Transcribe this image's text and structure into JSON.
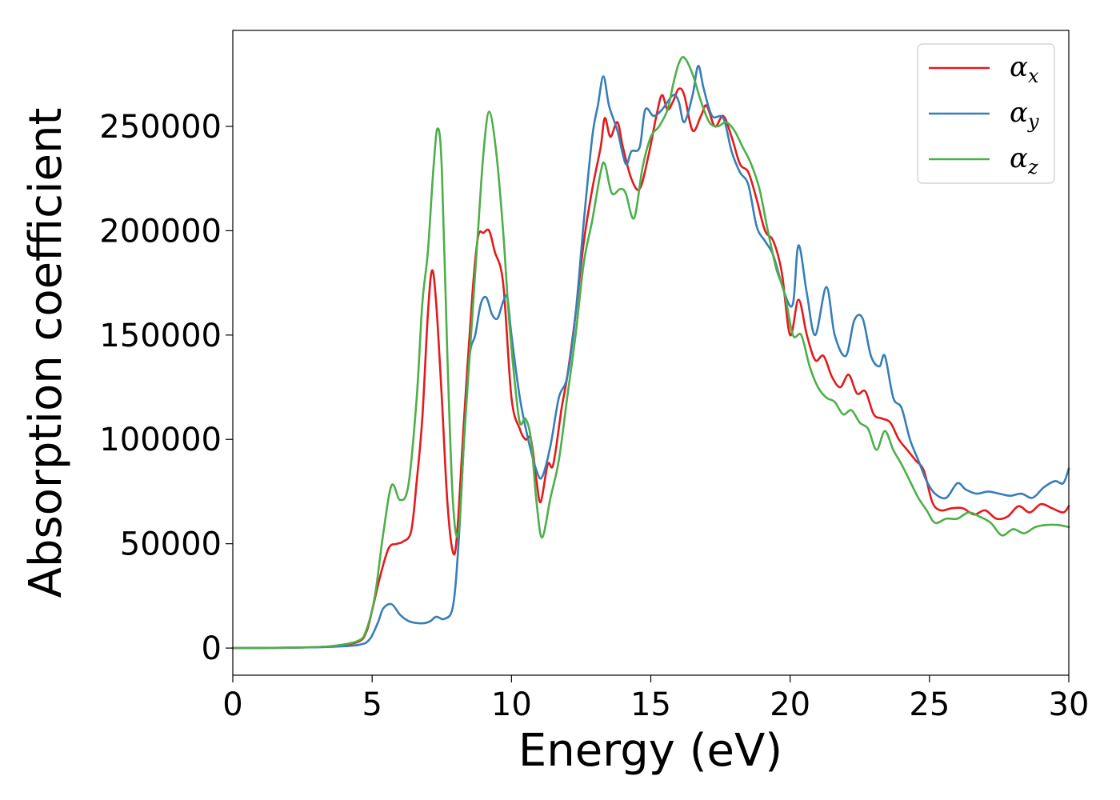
{
  "chart_data": {
    "type": "line",
    "title": "",
    "xlabel": "Energy (eV)",
    "ylabel": "Absorption coefficient",
    "xlim": [
      0,
      30
    ],
    "ylim": [
      -13000,
      296000
    ],
    "xticks": [
      0,
      5,
      10,
      15,
      20,
      25,
      30
    ],
    "yticks": [
      0,
      50000,
      100000,
      150000,
      200000,
      250000
    ],
    "legend_position": "top-right",
    "grid": false,
    "series": [
      {
        "name": "αx",
        "symbol": "α",
        "subscript": "x",
        "color": "#e41a1c",
        "points": [
          [
            0,
            0
          ],
          [
            2,
            200
          ],
          [
            3.5,
            800
          ],
          [
            4.5,
            3000
          ],
          [
            4.8,
            8000
          ],
          [
            5.0,
            18000
          ],
          [
            5.3,
            35000
          ],
          [
            5.6,
            48000
          ],
          [
            5.9,
            50000
          ],
          [
            6.1,
            51000
          ],
          [
            6.4,
            56000
          ],
          [
            6.6,
            80000
          ],
          [
            6.8,
            110000
          ],
          [
            7.0,
            160000
          ],
          [
            7.15,
            181000
          ],
          [
            7.3,
            165000
          ],
          [
            7.5,
            120000
          ],
          [
            7.7,
            70000
          ],
          [
            7.9,
            46000
          ],
          [
            8.05,
            55000
          ],
          [
            8.3,
            110000
          ],
          [
            8.6,
            170000
          ],
          [
            8.8,
            197000
          ],
          [
            9.0,
            199000
          ],
          [
            9.2,
            200000
          ],
          [
            9.4,
            190000
          ],
          [
            9.7,
            175000
          ],
          [
            10.0,
            120000
          ],
          [
            10.3,
            105000
          ],
          [
            10.5,
            100000
          ],
          [
            10.7,
            100000
          ],
          [
            10.9,
            80000
          ],
          [
            11.05,
            70000
          ],
          [
            11.3,
            88000
          ],
          [
            11.5,
            88000
          ],
          [
            11.8,
            115000
          ],
          [
            12.0,
            130000
          ],
          [
            12.3,
            160000
          ],
          [
            12.6,
            195000
          ],
          [
            12.9,
            220000
          ],
          [
            13.2,
            240000
          ],
          [
            13.35,
            254000
          ],
          [
            13.55,
            245000
          ],
          [
            13.8,
            252000
          ],
          [
            14.0,
            240000
          ],
          [
            14.3,
            225000
          ],
          [
            14.6,
            220000
          ],
          [
            14.9,
            235000
          ],
          [
            15.2,
            255000
          ],
          [
            15.4,
            265000
          ],
          [
            15.6,
            258000
          ],
          [
            15.8,
            262000
          ],
          [
            16.0,
            268000
          ],
          [
            16.2,
            265000
          ],
          [
            16.5,
            248000
          ],
          [
            16.8,
            255000
          ],
          [
            17.0,
            260000
          ],
          [
            17.3,
            250000
          ],
          [
            17.6,
            255000
          ],
          [
            17.9,
            245000
          ],
          [
            18.2,
            232000
          ],
          [
            18.5,
            228000
          ],
          [
            18.8,
            215000
          ],
          [
            19.1,
            200000
          ],
          [
            19.4,
            195000
          ],
          [
            19.7,
            180000
          ],
          [
            20.0,
            150000
          ],
          [
            20.3,
            167000
          ],
          [
            20.6,
            150000
          ],
          [
            20.9,
            138000
          ],
          [
            21.2,
            140000
          ],
          [
            21.5,
            130000
          ],
          [
            21.8,
            125000
          ],
          [
            22.1,
            131000
          ],
          [
            22.4,
            122000
          ],
          [
            22.7,
            123000
          ],
          [
            23.0,
            112000
          ],
          [
            23.3,
            110000
          ],
          [
            23.6,
            108000
          ],
          [
            23.9,
            100000
          ],
          [
            24.2,
            95000
          ],
          [
            24.5,
            90000
          ],
          [
            24.8,
            85000
          ],
          [
            25.1,
            70000
          ],
          [
            25.4,
            66000
          ],
          [
            25.8,
            67000
          ],
          [
            26.2,
            67000
          ],
          [
            26.6,
            64000
          ],
          [
            27.0,
            66000
          ],
          [
            27.4,
            62000
          ],
          [
            27.8,
            63000
          ],
          [
            28.2,
            68000
          ],
          [
            28.6,
            65000
          ],
          [
            29.0,
            69000
          ],
          [
            29.4,
            67000
          ],
          [
            29.8,
            65000
          ],
          [
            30,
            68000
          ]
        ]
      },
      {
        "name": "αy",
        "symbol": "α",
        "subscript": "y",
        "color": "#377eb8",
        "points": [
          [
            0,
            0
          ],
          [
            2,
            150
          ],
          [
            3.5,
            600
          ],
          [
            4.5,
            1500
          ],
          [
            4.9,
            4000
          ],
          [
            5.2,
            12000
          ],
          [
            5.4,
            19000
          ],
          [
            5.7,
            21000
          ],
          [
            6.0,
            16000
          ],
          [
            6.3,
            13000
          ],
          [
            6.6,
            12000
          ],
          [
            6.9,
            12000
          ],
          [
            7.1,
            13000
          ],
          [
            7.3,
            15000
          ],
          [
            7.6,
            14000
          ],
          [
            7.9,
            20000
          ],
          [
            8.1,
            50000
          ],
          [
            8.3,
            100000
          ],
          [
            8.5,
            140000
          ],
          [
            8.7,
            150000
          ],
          [
            8.9,
            165000
          ],
          [
            9.1,
            168000
          ],
          [
            9.3,
            160000
          ],
          [
            9.5,
            158000
          ],
          [
            9.7,
            166000
          ],
          [
            9.85,
            168000
          ],
          [
            10.0,
            150000
          ],
          [
            10.3,
            120000
          ],
          [
            10.6,
            100000
          ],
          [
            10.9,
            85000
          ],
          [
            11.1,
            82000
          ],
          [
            11.4,
            97000
          ],
          [
            11.7,
            120000
          ],
          [
            12.0,
            130000
          ],
          [
            12.3,
            160000
          ],
          [
            12.6,
            205000
          ],
          [
            12.9,
            245000
          ],
          [
            13.1,
            260000
          ],
          [
            13.3,
            274000
          ],
          [
            13.5,
            260000
          ],
          [
            13.8,
            248000
          ],
          [
            14.1,
            232000
          ],
          [
            14.3,
            238000
          ],
          [
            14.6,
            240000
          ],
          [
            14.8,
            258000
          ],
          [
            15.1,
            255000
          ],
          [
            15.4,
            258000
          ],
          [
            15.8,
            265000
          ],
          [
            16.0,
            262000
          ],
          [
            16.2,
            252000
          ],
          [
            16.5,
            265000
          ],
          [
            16.7,
            279000
          ],
          [
            16.9,
            268000
          ],
          [
            17.2,
            255000
          ],
          [
            17.6,
            254000
          ],
          [
            17.9,
            238000
          ],
          [
            18.2,
            228000
          ],
          [
            18.5,
            222000
          ],
          [
            18.8,
            202000
          ],
          [
            19.1,
            195000
          ],
          [
            19.4,
            188000
          ],
          [
            19.8,
            170000
          ],
          [
            20.1,
            165000
          ],
          [
            20.3,
            193000
          ],
          [
            20.6,
            170000
          ],
          [
            20.9,
            150000
          ],
          [
            21.3,
            173000
          ],
          [
            21.6,
            150000
          ],
          [
            22.0,
            140000
          ],
          [
            22.3,
            157000
          ],
          [
            22.6,
            158000
          ],
          [
            22.9,
            140000
          ],
          [
            23.2,
            135000
          ],
          [
            23.4,
            140000
          ],
          [
            23.7,
            120000
          ],
          [
            24.0,
            115000
          ],
          [
            24.3,
            100000
          ],
          [
            24.6,
            90000
          ],
          [
            24.9,
            80000
          ],
          [
            25.2,
            74000
          ],
          [
            25.6,
            72000
          ],
          [
            26.0,
            79000
          ],
          [
            26.3,
            76000
          ],
          [
            26.7,
            74000
          ],
          [
            27.1,
            75000
          ],
          [
            27.5,
            74000
          ],
          [
            27.9,
            73000
          ],
          [
            28.3,
            74000
          ],
          [
            28.7,
            72000
          ],
          [
            29.1,
            77000
          ],
          [
            29.5,
            80000
          ],
          [
            29.8,
            79000
          ],
          [
            30,
            86000
          ]
        ]
      },
      {
        "name": "αz",
        "symbol": "α",
        "subscript": "z",
        "color": "#4daf4a",
        "points": [
          [
            0,
            0
          ],
          [
            2,
            200
          ],
          [
            3.5,
            900
          ],
          [
            4.5,
            3500
          ],
          [
            4.8,
            9000
          ],
          [
            5.1,
            25000
          ],
          [
            5.4,
            55000
          ],
          [
            5.7,
            78000
          ],
          [
            6.0,
            71000
          ],
          [
            6.3,
            78000
          ],
          [
            6.6,
            120000
          ],
          [
            6.8,
            165000
          ],
          [
            7.0,
            190000
          ],
          [
            7.2,
            230000
          ],
          [
            7.35,
            249000
          ],
          [
            7.5,
            230000
          ],
          [
            7.7,
            140000
          ],
          [
            7.9,
            70000
          ],
          [
            8.1,
            55000
          ],
          [
            8.3,
            100000
          ],
          [
            8.6,
            160000
          ],
          [
            8.8,
            200000
          ],
          [
            9.0,
            238000
          ],
          [
            9.2,
            257000
          ],
          [
            9.45,
            238000
          ],
          [
            9.7,
            200000
          ],
          [
            9.9,
            160000
          ],
          [
            10.1,
            130000
          ],
          [
            10.3,
            108000
          ],
          [
            10.5,
            110000
          ],
          [
            10.7,
            100000
          ],
          [
            10.9,
            70000
          ],
          [
            11.1,
            53000
          ],
          [
            11.4,
            72000
          ],
          [
            11.7,
            90000
          ],
          [
            12.0,
            120000
          ],
          [
            12.3,
            150000
          ],
          [
            12.6,
            185000
          ],
          [
            12.9,
            205000
          ],
          [
            13.2,
            228000
          ],
          [
            13.35,
            232000
          ],
          [
            13.6,
            218000
          ],
          [
            13.9,
            220000
          ],
          [
            14.1,
            218000
          ],
          [
            14.4,
            206000
          ],
          [
            14.7,
            230000
          ],
          [
            15.0,
            245000
          ],
          [
            15.3,
            250000
          ],
          [
            15.6,
            258000
          ],
          [
            15.8,
            270000
          ],
          [
            16.0,
            280000
          ],
          [
            16.2,
            283000
          ],
          [
            16.5,
            275000
          ],
          [
            16.8,
            262000
          ],
          [
            17.1,
            252000
          ],
          [
            17.4,
            250000
          ],
          [
            17.7,
            252000
          ],
          [
            18.0,
            248000
          ],
          [
            18.3,
            240000
          ],
          [
            18.6,
            232000
          ],
          [
            18.9,
            220000
          ],
          [
            19.2,
            200000
          ],
          [
            19.5,
            182000
          ],
          [
            19.8,
            170000
          ],
          [
            20.1,
            150000
          ],
          [
            20.4,
            150000
          ],
          [
            20.7,
            135000
          ],
          [
            21.0,
            125000
          ],
          [
            21.3,
            120000
          ],
          [
            21.6,
            118000
          ],
          [
            21.9,
            112000
          ],
          [
            22.2,
            114000
          ],
          [
            22.5,
            108000
          ],
          [
            22.8,
            105000
          ],
          [
            23.1,
            95000
          ],
          [
            23.4,
            104000
          ],
          [
            23.7,
            95000
          ],
          [
            24.0,
            88000
          ],
          [
            24.3,
            80000
          ],
          [
            24.6,
            72000
          ],
          [
            24.9,
            66000
          ],
          [
            25.2,
            60000
          ],
          [
            25.6,
            62000
          ],
          [
            26.0,
            62000
          ],
          [
            26.4,
            65000
          ],
          [
            26.8,
            63000
          ],
          [
            27.2,
            60000
          ],
          [
            27.6,
            54000
          ],
          [
            28.0,
            57000
          ],
          [
            28.4,
            55000
          ],
          [
            28.8,
            58000
          ],
          [
            29.2,
            59000
          ],
          [
            29.6,
            59000
          ],
          [
            30,
            58000
          ]
        ]
      }
    ]
  }
}
